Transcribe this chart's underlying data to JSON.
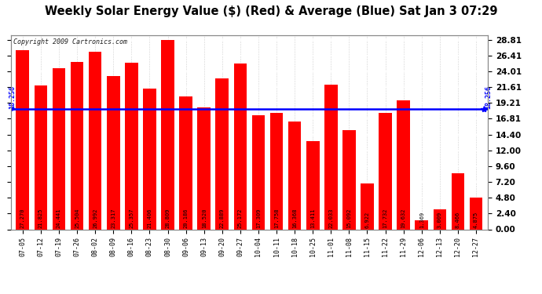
{
  "title": "Weekly Solar Energy Value ($) (Red) & Average (Blue) Sat Jan 3 07:29",
  "copyright": "Copyright 2009 Cartronics.com",
  "categories": [
    "07-05",
    "07-12",
    "07-19",
    "07-26",
    "08-02",
    "08-09",
    "08-16",
    "08-23",
    "08-30",
    "09-06",
    "09-13",
    "09-20",
    "09-27",
    "10-04",
    "10-11",
    "10-18",
    "10-25",
    "11-01",
    "11-08",
    "11-15",
    "11-22",
    "11-29",
    "12-06",
    "12-13",
    "12-20",
    "12-27"
  ],
  "values": [
    27.27,
    21.825,
    24.441,
    25.504,
    26.992,
    23.317,
    25.357,
    21.406,
    28.809,
    20.186,
    18.52,
    22.889,
    25.172,
    17.309,
    17.758,
    16.368,
    13.411,
    22.033,
    15.092,
    6.922,
    17.732,
    19.632,
    1.369,
    3.009,
    8.466,
    4.875
  ],
  "average": 18.256,
  "bar_color": "#FF0000",
  "avg_line_color": "#0000FF",
  "background_color": "#FFFFFF",
  "plot_bg_color": "#FFFFFF",
  "title_color": "#000000",
  "bar_label_color": "#000000",
  "yticks": [
    0.0,
    2.4,
    4.8,
    7.2,
    9.6,
    12.0,
    14.4,
    16.81,
    19.21,
    21.61,
    24.01,
    26.41,
    28.81
  ],
  "ylim": [
    0,
    29.5
  ],
  "bar_label_fontsize": 5.0,
  "avg_label": "18.256",
  "title_fontsize": 10.5,
  "copyright_fontsize": 6.0,
  "tick_fontsize": 7.5,
  "xtick_fontsize": 6.0
}
